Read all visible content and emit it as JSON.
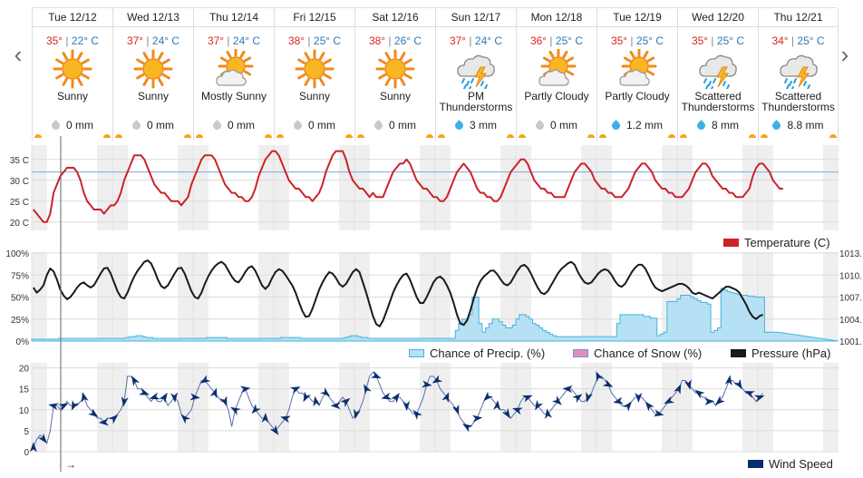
{
  "nav": {
    "prev_label": "‹",
    "next_label": "›"
  },
  "days": [
    {
      "name": "Tue 12/12",
      "hi": "35°",
      "lo": "22° C",
      "icon": "sun-icon",
      "condition": "Sunny",
      "precip": "0 mm",
      "precip_icon": "gray-drop-icon"
    },
    {
      "name": "Wed 12/13",
      "hi": "37°",
      "lo": "24° C",
      "icon": "sun-icon",
      "condition": "Sunny",
      "precip": "0 mm",
      "precip_icon": "gray-drop-icon"
    },
    {
      "name": "Thu 12/14",
      "hi": "37°",
      "lo": "24° C",
      "icon": "sun-cloud-icon",
      "condition": "Mostly Sunny",
      "precip": "0 mm",
      "precip_icon": "gray-drop-icon"
    },
    {
      "name": "Fri 12/15",
      "hi": "38°",
      "lo": "25° C",
      "icon": "sun-icon",
      "condition": "Sunny",
      "precip": "0 mm",
      "precip_icon": "gray-drop-icon"
    },
    {
      "name": "Sat 12/16",
      "hi": "38°",
      "lo": "26° C",
      "icon": "sun-icon",
      "condition": "Sunny",
      "precip": "0 mm",
      "precip_icon": "gray-drop-icon"
    },
    {
      "name": "Sun 12/17",
      "hi": "37°",
      "lo": "24° C",
      "icon": "thunderstorm-icon",
      "condition": "PM Thunderstorms",
      "precip": "3 mm",
      "precip_icon": "blue-drop-icon"
    },
    {
      "name": "Mon 12/18",
      "hi": "36°",
      "lo": "25° C",
      "icon": "sun-cloud-icon",
      "condition": "Partly Cloudy",
      "precip": "0 mm",
      "precip_icon": "gray-drop-icon"
    },
    {
      "name": "Tue 12/19",
      "hi": "35°",
      "lo": "25° C",
      "icon": "sun-cloud-icon",
      "condition": "Partly Cloudy",
      "precip": "1.2 mm",
      "precip_icon": "blue-drop-icon"
    },
    {
      "name": "Wed 12/20",
      "hi": "35°",
      "lo": "25° C",
      "icon": "thunderstorm-icon",
      "condition": "Scattered Thunderstorms",
      "precip": "8 mm",
      "precip_icon": "blue-drop-icon"
    },
    {
      "name": "Thu 12/21",
      "hi": "34°",
      "lo": "25° C",
      "icon": "thunderstorm-icon",
      "condition": "Scattered Thunderstorms",
      "precip": "8.8 mm",
      "precip_icon": "blue-drop-icon"
    }
  ],
  "colors": {
    "temp": "#cc2229",
    "precip_fill": "#b6e0f3",
    "precip_line": "#45b3e0",
    "snow": "#e090b8",
    "pressure": "#1a1a1a",
    "wind": "#0a2f6e",
    "threshold": "#7fa7d9",
    "band": "#efefef"
  },
  "chart_data": [
    {
      "type": "line",
      "title": "",
      "series": [
        {
          "name": "Temperature (C)",
          "note": "hourly over 10 days, 24 points per day",
          "values": [
            23,
            22,
            21,
            20,
            20,
            22,
            27,
            29,
            31,
            32,
            33,
            33,
            33,
            32,
            30,
            27,
            25,
            24,
            23,
            23,
            23,
            22,
            23,
            24,
            24,
            25,
            27,
            30,
            32,
            34,
            36,
            36,
            36,
            35,
            33,
            31,
            29,
            28,
            27,
            27,
            26,
            25,
            25,
            25,
            24,
            25,
            26,
            29,
            31,
            33,
            35,
            36,
            36,
            36,
            35,
            33,
            31,
            29,
            28,
            27,
            27,
            26,
            26,
            25,
            25,
            26,
            28,
            31,
            33,
            35,
            36,
            37,
            37,
            36,
            34,
            32,
            30,
            29,
            28,
            28,
            27,
            26,
            26,
            25,
            26,
            27,
            29,
            32,
            34,
            36,
            37,
            37,
            37,
            35,
            32,
            30,
            29,
            28,
            28,
            27,
            26,
            27,
            26,
            26,
            26,
            28,
            30,
            32,
            33,
            34,
            34,
            35,
            34,
            32,
            30,
            29,
            28,
            28,
            27,
            26,
            26,
            25,
            25,
            26,
            28,
            30,
            32,
            33,
            34,
            33,
            32,
            30,
            28,
            27,
            27,
            26,
            26,
            25,
            25,
            26,
            28,
            30,
            32,
            33,
            34,
            35,
            35,
            34,
            32,
            30,
            29,
            28,
            28,
            27,
            27,
            26,
            26,
            26,
            26,
            28,
            30,
            32,
            33,
            34,
            34,
            33,
            32,
            30,
            29,
            28,
            28,
            27,
            27,
            26,
            26,
            26,
            27,
            28,
            30,
            32,
            33,
            34,
            34,
            33,
            32,
            30,
            29,
            28,
            28,
            27,
            27,
            26,
            26,
            26,
            27,
            28,
            30,
            32,
            33,
            34,
            34,
            33,
            31,
            30,
            29,
            28,
            28,
            27,
            27,
            26,
            26,
            26,
            27,
            28,
            31,
            33,
            34,
            34,
            33,
            32,
            30,
            29,
            28,
            28
          ]
        }
      ],
      "y_ticks": [
        "35 C",
        "30 C",
        "25 C",
        "20 C"
      ],
      "ylim": [
        18,
        38
      ],
      "reference_line": 32,
      "legend": "right-bottom"
    },
    {
      "type": "area",
      "series": [
        {
          "name": "Chance of Precip. (%)",
          "note": "hourly, 24 points per day",
          "values": [
            2,
            2,
            2,
            2,
            2,
            2,
            2,
            2,
            3,
            3,
            3,
            3,
            3,
            3,
            3,
            3,
            3,
            3,
            3,
            3,
            3,
            3,
            3,
            3,
            3,
            3,
            3,
            3,
            4,
            5,
            5,
            6,
            6,
            5,
            4,
            4,
            3,
            3,
            3,
            3,
            3,
            3,
            3,
            3,
            3,
            3,
            3,
            3,
            3,
            3,
            3,
            3,
            4,
            4,
            4,
            4,
            4,
            4,
            3,
            3,
            3,
            3,
            3,
            3,
            3,
            3,
            3,
            3,
            3,
            3,
            3,
            3,
            3,
            3,
            4,
            4,
            4,
            4,
            4,
            4,
            3,
            3,
            3,
            3,
            3,
            3,
            3,
            3,
            3,
            3,
            3,
            3,
            3,
            4,
            5,
            6,
            6,
            5,
            4,
            4,
            3,
            3,
            3,
            3,
            3,
            3,
            3,
            3,
            3,
            3,
            3,
            3,
            3,
            3,
            3,
            3,
            3,
            3,
            3,
            3,
            3,
            3,
            3,
            3,
            3,
            3,
            12,
            20,
            25,
            25,
            30,
            50,
            50,
            20,
            10,
            15,
            20,
            25,
            25,
            22,
            18,
            15,
            15,
            18,
            25,
            30,
            30,
            28,
            25,
            20,
            18,
            15,
            12,
            10,
            8,
            6,
            5,
            5,
            5,
            5,
            5,
            5,
            5,
            5,
            5,
            5,
            5,
            5,
            5,
            5,
            5,
            5,
            5,
            5,
            20,
            30,
            30,
            30,
            30,
            30,
            30,
            30,
            28,
            28,
            26,
            26,
            6,
            8,
            10,
            45,
            45,
            45,
            48,
            52,
            52,
            52,
            50,
            48,
            46,
            44,
            44,
            42,
            10,
            12,
            15,
            60,
            58,
            56,
            55,
            54,
            53,
            52,
            52,
            51,
            51,
            50,
            50,
            50,
            10,
            10,
            10,
            10
          ]
        },
        {
          "name": "Chance of Snow (%)",
          "values": []
        }
      ],
      "y_ticks": [
        "100%",
        "75%",
        "50%",
        "25%",
        "0%"
      ],
      "ylim": [
        0,
        100
      ]
    },
    {
      "type": "line",
      "series": [
        {
          "name": "Pressure (hPa)",
          "note": "hourly, 24 points per day",
          "values": [
            1008.3,
            1007.6,
            1008.0,
            1008.6,
            1010.0,
            1010.9,
            1010.5,
            1009.4,
            1008.0,
            1007.2,
            1006.7,
            1007.0,
            1007.6,
            1008.3,
            1008.8,
            1009.0,
            1008.6,
            1008.3,
            1008.6,
            1009.4,
            1010.2,
            1010.9,
            1011.0,
            1010.2,
            1009.0,
            1007.8,
            1007.0,
            1006.8,
            1007.6,
            1008.8,
            1009.8,
            1010.6,
            1011.2,
            1011.8,
            1012.0,
            1011.6,
            1010.6,
            1009.4,
            1008.5,
            1008.2,
            1008.6,
            1009.4,
            1010.2,
            1010.9,
            1011.0,
            1010.2,
            1009.0,
            1007.8,
            1007.0,
            1006.8,
            1007.6,
            1008.8,
            1009.8,
            1010.6,
            1011.2,
            1011.6,
            1011.8,
            1011.4,
            1010.6,
            1009.8,
            1009.2,
            1009.0,
            1009.6,
            1010.4,
            1011.0,
            1011.2,
            1010.6,
            1009.6,
            1008.6,
            1008.1,
            1008.6,
            1009.6,
            1010.4,
            1010.8,
            1010.6,
            1010.0,
            1009.3,
            1008.6,
            1007.6,
            1006.3,
            1005.1,
            1004.3,
            1004.4,
            1005.4,
            1006.7,
            1008.0,
            1009.0,
            1009.8,
            1010.4,
            1010.2,
            1009.6,
            1008.8,
            1008.4,
            1008.8,
            1009.6,
            1010.4,
            1010.8,
            1010.4,
            1009.0,
            1007.6,
            1006.0,
            1004.4,
            1003.3,
            1003.0,
            1003.8,
            1005.0,
            1006.3,
            1007.6,
            1008.6,
            1009.4,
            1010.0,
            1010.2,
            1009.4,
            1008.2,
            1007.0,
            1006.2,
            1006.2,
            1007.0,
            1008.0,
            1009.0,
            1009.6,
            1009.8,
            1009.4,
            1008.6,
            1007.6,
            1006.2,
            1004.6,
            1003.4,
            1003.2,
            1003.8,
            1005.2,
            1006.8,
            1008.2,
            1009.2,
            1009.8,
            1010.2,
            1010.6,
            1010.6,
            1010.1,
            1009.4,
            1008.8,
            1008.6,
            1009.0,
            1009.8,
            1010.6,
            1011.2,
            1011.4,
            1011.0,
            1010.2,
            1009.2,
            1008.3,
            1007.6,
            1007.4,
            1007.8,
            1008.6,
            1009.4,
            1010.2,
            1010.8,
            1011.2,
            1011.6,
            1011.8,
            1011.4,
            1010.4,
            1009.6,
            1009.0,
            1008.8,
            1009.0,
            1009.6,
            1010.2,
            1010.6,
            1010.8,
            1010.6,
            1010.0,
            1009.2,
            1008.6,
            1008.4,
            1008.8,
            1009.6,
            1010.4,
            1011.0,
            1011.4,
            1011.4,
            1010.9,
            1010.0,
            1009.0,
            1008.3,
            1008.0,
            1007.8,
            1008.0,
            1008.2,
            1008.4,
            1008.6,
            1008.8,
            1008.8,
            1008.6,
            1008.2,
            1007.6,
            1007.4,
            1007.6,
            1007.4,
            1007.2,
            1007.0,
            1006.8,
            1007.2,
            1007.6,
            1008.0,
            1008.4,
            1008.4,
            1008.2,
            1008.0,
            1007.6,
            1006.8,
            1006.0,
            1005.0,
            1004.3,
            1004.0,
            1004.4,
            1004.6
          ]
        }
      ],
      "y_ticks": [
        "1013.",
        "1010.",
        "1007.",
        "1004.",
        "1001."
      ],
      "ylim": [
        1001,
        1013
      ]
    },
    {
      "type": "line",
      "series": [
        {
          "name": "Wind Speed",
          "note": "hourly, 24 points per day",
          "values": [
            1,
            3,
            4,
            3,
            2,
            5,
            11,
            11,
            10,
            11,
            12,
            11,
            11,
            11,
            12,
            13,
            11,
            10,
            9,
            8,
            8,
            7,
            8,
            8,
            8,
            9,
            10,
            12,
            18,
            18,
            17,
            15,
            15,
            14,
            13,
            12,
            13,
            12,
            12,
            13,
            11,
            12,
            13,
            12,
            9,
            8,
            9,
            10,
            13,
            15,
            17,
            17,
            16,
            15,
            14,
            13,
            12,
            12,
            10,
            6,
            10,
            12,
            14,
            15,
            13,
            11,
            10,
            9,
            8,
            8,
            7,
            6,
            5,
            6,
            7,
            8,
            10,
            13,
            15,
            14,
            14,
            13,
            13,
            12,
            12,
            11,
            13,
            14,
            13,
            12,
            11,
            12,
            13,
            12,
            10,
            8,
            9,
            10,
            12,
            15,
            18,
            19,
            18,
            16,
            14,
            13,
            12,
            12,
            13,
            13,
            12,
            11,
            10,
            9,
            9,
            11,
            13,
            16,
            18,
            18,
            17,
            15,
            14,
            13,
            12,
            11,
            10,
            8,
            7,
            6,
            6,
            7,
            8,
            10,
            12,
            13,
            13,
            12,
            11,
            10,
            10,
            9,
            8,
            9,
            10,
            12,
            13,
            13,
            12,
            11,
            11,
            10,
            9,
            9,
            10,
            11,
            12,
            13,
            14,
            15,
            15,
            14,
            13,
            12,
            12,
            13,
            14,
            16,
            18,
            18,
            17,
            16,
            14,
            13,
            12,
            11,
            11,
            11,
            12,
            13,
            13,
            13,
            12,
            11,
            10,
            9,
            9,
            10,
            11,
            12,
            13,
            14,
            15,
            17,
            17,
            16,
            15,
            14,
            14,
            13,
            13,
            12,
            12,
            11,
            12,
            13,
            15,
            17,
            17,
            16,
            16,
            15,
            14,
            14,
            13,
            12,
            13,
            14
          ]
        }
      ],
      "y_ticks": [
        "20",
        "15",
        "10",
        "5",
        "0"
      ],
      "ylim": [
        0,
        21
      ]
    }
  ],
  "legends": {
    "temperature": "Temperature (C)",
    "precip": "Chance of Precip. (%)",
    "snow": "Chance of Snow (%)",
    "pressure": "Pressure (hPa)",
    "wind": "Wind Speed"
  },
  "cursor_label": "→"
}
